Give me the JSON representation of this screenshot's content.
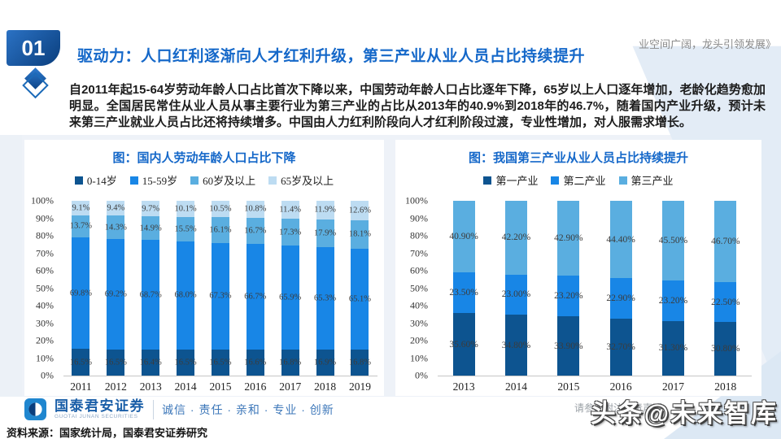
{
  "page": {
    "number": "01",
    "title": "驱动力：人口红利逐渐向人才红利升级，第三产业从业人员占比持续提升",
    "header_right": "业空间广阔，龙头引领发展》",
    "body": "自2011年起15-64岁劳动年龄人口占比首次下降以来，中国劳动年龄人口占比逐年下降，65岁以上人口逐年增加，老龄化趋势愈加明显。全国居民常住从业人员从事主要行业为第三产业的占比从2013年的40.9%到2018年的46.7%，随着国内产业升级，预计未来第三产业就业人员占比还将持续增多。中国由人力红利阶段向人才红利阶段过渡，专业性增加，对人服需求增长。"
  },
  "footer": {
    "brand": "国泰君安证券",
    "brand_sub": "GUOTAI JUNAN SECURITIES",
    "slogan": "诚信 · 责任 · 亲和 · 专业 · 创新",
    "source": "资料来源：国家统计局，国泰君安证券研究",
    "disclaimer": "请参阅附注免责声明",
    "watermark": "头条@未来智库"
  },
  "colors": {
    "navy": "#0D5490",
    "bright_blue": "#1886E6",
    "sky_blue": "#5AAEE0",
    "pale_blue": "#BDDCF2",
    "accent_title": "#1568C9"
  },
  "chart_data": [
    {
      "type": "bar",
      "stacked": true,
      "normalized_100": true,
      "title": "图：国内人劳动年龄人口占比下降",
      "xlabel": "",
      "ylabel": "",
      "ylim": [
        0,
        100
      ],
      "grid": false,
      "legend_position": "top",
      "y_ticks": [
        "100%",
        "90%",
        "80%",
        "70%",
        "60%",
        "50%",
        "40%",
        "30%",
        "20%",
        "10%",
        "0%"
      ],
      "categories": [
        "2011",
        "2012",
        "2013",
        "2014",
        "2015",
        "2016",
        "2017",
        "2018",
        "2019"
      ],
      "series": [
        {
          "name": "0-14岁",
          "color": "#0D5490",
          "values": [
            16.5,
            16.5,
            16.4,
            16.5,
            16.5,
            16.6,
            16.8,
            16.9,
            16.8
          ],
          "labels": [
            "16.5%",
            "16.5%",
            "16.4%",
            "16.5%",
            "16.5%",
            "16.6%",
            "16.8%",
            "16.9%",
            "16.8%"
          ]
        },
        {
          "name": "15-59岁",
          "color": "#1886E6",
          "values": [
            69.8,
            69.2,
            68.7,
            68.0,
            67.3,
            66.7,
            65.9,
            65.3,
            65.1
          ],
          "labels": [
            "69.8%",
            "69.2%",
            "68.7%",
            "68.0%",
            "67.3%",
            "66.7%",
            "65.9%",
            "65.3%",
            "65.1%"
          ]
        },
        {
          "name": "60岁及以上",
          "color": "#5AAEE0",
          "values": [
            13.7,
            14.3,
            14.9,
            15.5,
            16.1,
            16.7,
            17.3,
            17.9,
            18.1
          ],
          "labels": [
            "13.7%",
            "14.3%",
            "14.9%",
            "15.5%",
            "16.1%",
            "16.7%",
            "17.3%",
            "17.9%",
            "18.1%"
          ]
        },
        {
          "name": "65岁及以上",
          "color": "#BDDCF2",
          "values": [
            9.1,
            9.4,
            9.7,
            10.1,
            10.5,
            10.8,
            11.4,
            11.9,
            12.6
          ],
          "labels": [
            "9.1%",
            "9.4%",
            "9.7%",
            "10.1%",
            "10.5%",
            "10.8%",
            "11.4%",
            "11.9%",
            "12.6%"
          ]
        }
      ]
    },
    {
      "type": "bar",
      "stacked": true,
      "normalized_100": true,
      "title": "图：我国第三产业从业人员占比持续提升",
      "xlabel": "",
      "ylabel": "",
      "ylim": [
        0,
        100
      ],
      "grid": false,
      "legend_position": "top",
      "y_ticks": [
        "100%",
        "90%",
        "80%",
        "70%",
        "60%",
        "50%",
        "40%",
        "30%",
        "20%",
        "10%",
        "0%"
      ],
      "categories": [
        "2013",
        "2014",
        "2015",
        "2016",
        "2017",
        "2018"
      ],
      "series": [
        {
          "name": "第一产业",
          "color": "#0D5490",
          "values": [
            35.6,
            34.8,
            33.9,
            32.7,
            31.3,
            30.8
          ],
          "labels": [
            "35.60%",
            "34.80%",
            "33.90%",
            "32.70%",
            "31.30%",
            "30.80%"
          ]
        },
        {
          "name": "第二产业",
          "color": "#1886E6",
          "values": [
            23.5,
            23.0,
            23.2,
            22.9,
            23.2,
            22.5
          ],
          "labels": [
            "23.50%",
            "23.00%",
            "23.20%",
            "22.90%",
            "23.20%",
            "22.50%"
          ]
        },
        {
          "name": "第三产业",
          "color": "#5AAEE0",
          "values": [
            40.9,
            42.2,
            42.9,
            44.4,
            45.5,
            46.7
          ],
          "labels": [
            "40.90%",
            "42.20%",
            "42.90%",
            "44.40%",
            "45.50%",
            "46.70%"
          ]
        }
      ]
    }
  ]
}
